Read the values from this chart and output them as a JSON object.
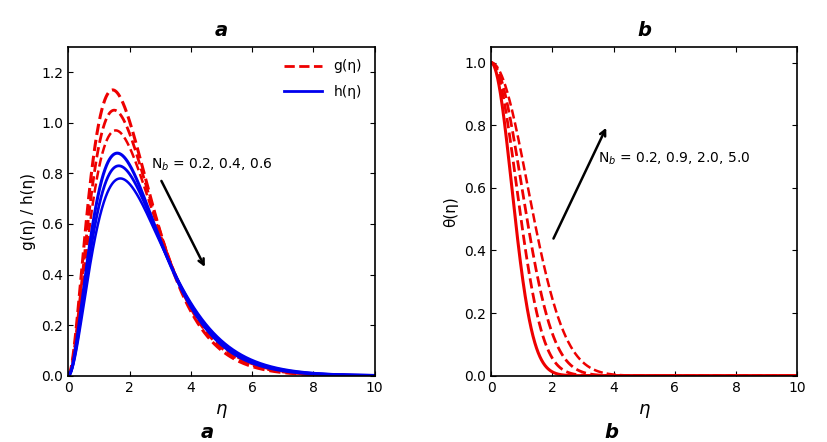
{
  "panel_a": {
    "title": "a",
    "xlabel": "η",
    "ylabel": "g(η) / h(η)",
    "xlim": [
      0,
      10
    ],
    "ylim": [
      0,
      1.3
    ],
    "yticks": [
      0,
      0.2,
      0.4,
      0.6,
      0.8,
      1.0,
      1.2
    ],
    "xticks": [
      0,
      2,
      4,
      6,
      8,
      10
    ],
    "g_params": [
      {
        "peak": 1.13,
        "eta_peak": 1.45,
        "decay": 0.38
      },
      {
        "peak": 1.05,
        "eta_peak": 1.5,
        "decay": 0.4
      },
      {
        "peak": 0.97,
        "eta_peak": 1.55,
        "decay": 0.42
      }
    ],
    "h_params": [
      {
        "peak": 0.88,
        "eta_peak": 1.6,
        "decay": 0.32
      },
      {
        "peak": 0.83,
        "eta_peak": 1.65,
        "decay": 0.33
      },
      {
        "peak": 0.78,
        "eta_peak": 1.7,
        "decay": 0.34
      }
    ],
    "annotation_text": "N$_b$ = 0.2, 0.4, 0.6",
    "legend_g": "g(η)",
    "legend_h": "h(η)",
    "g_color": "#EE0000",
    "h_color": "#0000EE"
  },
  "panel_b": {
    "title": "b",
    "xlabel": "η",
    "ylabel": "θ(η)",
    "xlim": [
      0,
      10
    ],
    "ylim": [
      0,
      1.05
    ],
    "yticks": [
      0,
      0.2,
      0.4,
      0.6,
      0.8,
      1.0
    ],
    "xticks": [
      0,
      2,
      4,
      6,
      8,
      10
    ],
    "theta_params": [
      {
        "k": 1.1,
        "n": 2.0
      },
      {
        "k": 0.72,
        "n": 2.0
      },
      {
        "k": 0.5,
        "n": 2.0
      },
      {
        "k": 0.35,
        "n": 2.0
      }
    ],
    "annotation_text": "N$_b$ = 0.2, 0.9, 2.0, 5.0",
    "theta_color": "#EE0000"
  }
}
